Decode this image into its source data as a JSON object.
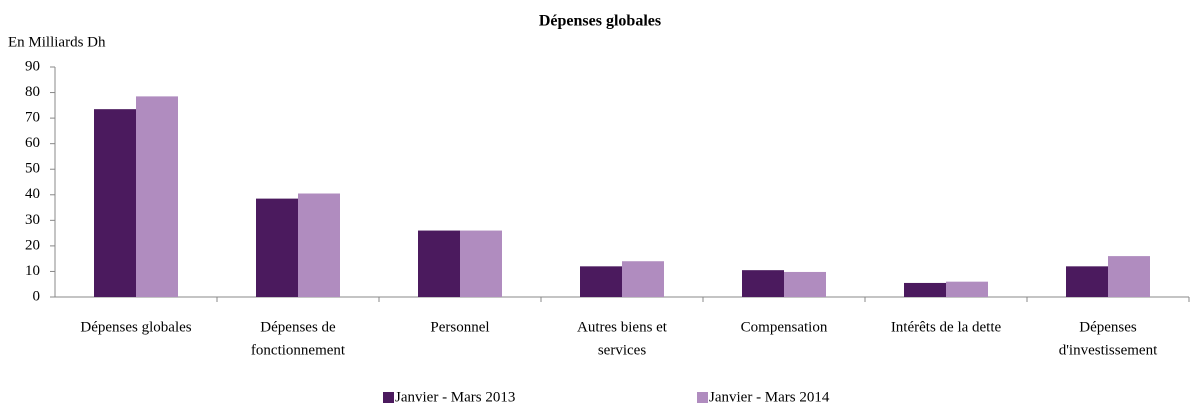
{
  "chart_data": {
    "type": "bar",
    "title": "Dépenses globales",
    "y_label": "En Milliards Dh",
    "categories": [
      [
        "Dépenses globales"
      ],
      [
        "Dépenses de",
        "fonctionnement"
      ],
      [
        "Personnel"
      ],
      [
        "Autres biens et",
        "services"
      ],
      [
        "Compensation"
      ],
      [
        "Intérêts de la dette"
      ],
      [
        "Dépenses",
        "d'investissement"
      ]
    ],
    "series": [
      {
        "name": "Janvier - Mars 2013",
        "color": "#4b1a5e",
        "values": [
          73.5,
          38.5,
          26,
          12,
          10.5,
          5.5,
          12
        ]
      },
      {
        "name": "Janvier - Mars 2014",
        "color": "#b08cbf",
        "values": [
          78.5,
          40.5,
          26,
          14,
          9.8,
          6,
          16
        ]
      }
    ],
    "ylim": [
      0,
      90
    ],
    "yticks": [
      0,
      10,
      20,
      30,
      40,
      50,
      60,
      70,
      80,
      90
    ],
    "grid": false
  }
}
